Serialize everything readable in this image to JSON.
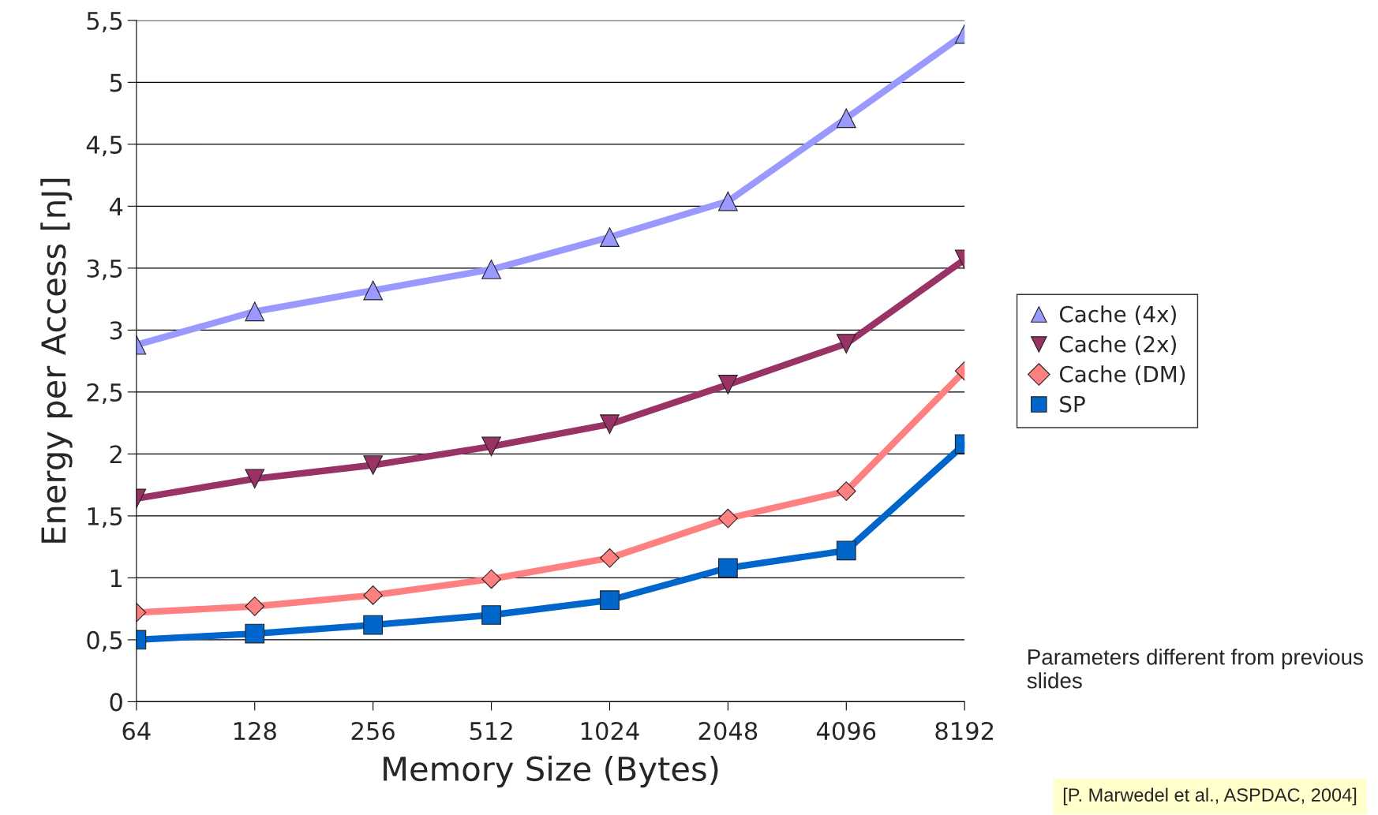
{
  "chart_data": {
    "type": "line",
    "xlabel": "Memory Size (Bytes)",
    "ylabel": "Energy per Access [nJ]",
    "categories": [
      "64",
      "128",
      "256",
      "512",
      "1024",
      "2048",
      "4096",
      "8192"
    ],
    "series": [
      {
        "name": "Cache (4x)",
        "color": "#9999ff",
        "marker": "triangle",
        "values": [
          2.88,
          3.15,
          3.32,
          3.49,
          3.75,
          4.04,
          4.71,
          5.39
        ]
      },
      {
        "name": "Cache (2x)",
        "color": "#993366",
        "marker": "triangle-down",
        "values": [
          1.64,
          1.8,
          1.91,
          2.06,
          2.24,
          2.56,
          2.89,
          3.57
        ]
      },
      {
        "name": "Cache (DM)",
        "color": "#ff8080",
        "marker": "diamond",
        "values": [
          0.72,
          0.77,
          0.86,
          0.99,
          1.16,
          1.48,
          1.7,
          2.67
        ]
      },
      {
        "name": "SP",
        "color": "#0066cc",
        "marker": "square",
        "values": [
          0.5,
          0.55,
          0.62,
          0.7,
          0.82,
          1.08,
          1.22,
          2.08
        ]
      }
    ],
    "ylim": [
      0,
      5.5
    ],
    "yticks": [
      0,
      {
        "value": 0.5,
        "label": "0,5"
      },
      1,
      {
        "value": 1.5,
        "label": "1,5"
      },
      2,
      {
        "value": 2.5,
        "label": "2,5"
      },
      3,
      {
        "value": 3.5,
        "label": "3,5"
      },
      4,
      {
        "value": 4.5,
        "label": "4,5"
      },
      5,
      {
        "value": 5.5,
        "label": "5,5"
      }
    ],
    "grid": "y",
    "legend": "right",
    "line_style": "solid",
    "annotations": [
      "Parameters different from previous slides",
      "[P. Marwedel et al., ASPDAC, 2004]"
    ]
  }
}
